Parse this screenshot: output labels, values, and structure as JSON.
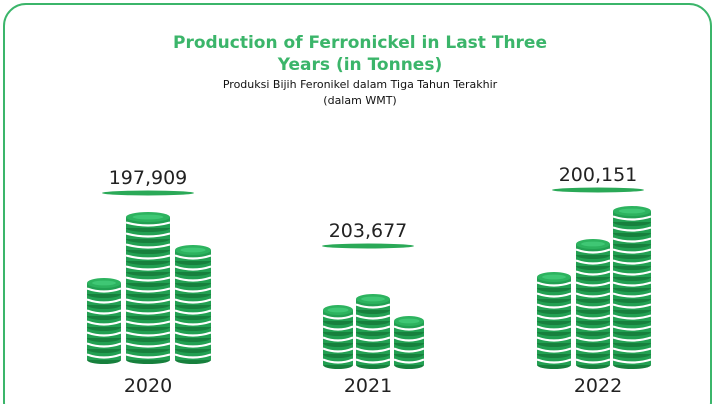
{
  "header": {
    "title_lines": [
      "Production of Ferronickel in Last Three",
      "Years (in Tonnes)"
    ],
    "subtitle_lines": [
      "Produksi Bijih Feronikel dalam Tiga Tahun Terakhir",
      "(dalam WMT)"
    ]
  },
  "items": [
    {
      "value": "197,909",
      "year": "2020"
    },
    {
      "value": "203,677",
      "year": "2021"
    },
    {
      "value": "200,151",
      "year": "2022"
    }
  ]
}
